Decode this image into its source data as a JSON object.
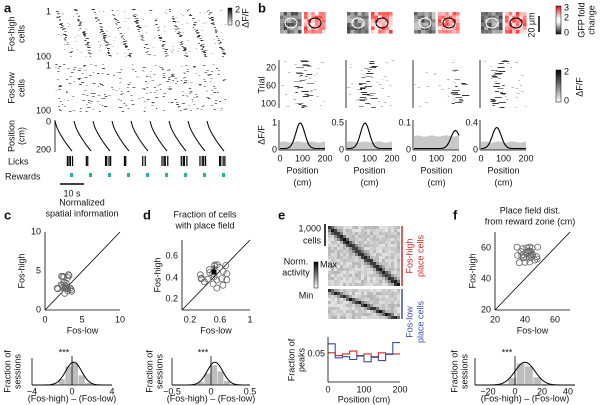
{
  "a": {
    "label": "a",
    "high": {
      "label": [
        "Fos-high",
        "cells"
      ],
      "ticks": [
        "1",
        "100"
      ]
    },
    "low": {
      "label": [
        "Fos-low",
        "cells"
      ],
      "ticks": [
        "1",
        "100"
      ]
    },
    "position": {
      "label": [
        "Position",
        "(cm)"
      ],
      "ticks": [
        "0",
        "200"
      ]
    },
    "colorbar": {
      "ticks": [
        "2",
        "0"
      ],
      "label": "ΔF/F"
    },
    "licks": "Licks",
    "rewards": "Rewards",
    "scale_bar": "10 s"
  },
  "b": {
    "label": "b",
    "scale_bar": "20 μm",
    "gfp_colorbar": {
      "ticks": [
        "3",
        "2",
        "0"
      ],
      "label": [
        "GFP fold",
        "change"
      ]
    },
    "trial_label": "Trial",
    "trial_ticks": [
      "20",
      "60",
      "100"
    ],
    "colorbar": {
      "ticks": [
        "2",
        "0"
      ],
      "label": "ΔF/F"
    },
    "trace_label": "ΔF/F",
    "cells": [
      {
        "yticks": [
          "1",
          "0"
        ],
        "xticks": [
          "0",
          "100",
          "200"
        ],
        "xlabel": [
          "Position",
          "(cm)"
        ]
      },
      {
        "yticks": [
          "0.5",
          "0"
        ],
        "xticks": [
          "0",
          "100",
          "200"
        ],
        "xlabel": [
          "Position",
          "(cm)"
        ]
      },
      {
        "yticks": [
          "0.1",
          "0"
        ],
        "xticks": [
          "0",
          "100",
          "200"
        ],
        "xlabel": [
          "Position",
          "(cm)"
        ]
      },
      {
        "yticks": [
          "0.4",
          "0"
        ],
        "xticks": [
          "0",
          "100",
          "200"
        ],
        "xlabel": [
          "Position",
          "(cm)"
        ]
      }
    ]
  },
  "c": {
    "label": "c",
    "title": [
      "Normalized",
      "spatial information"
    ],
    "ylabel": "Fos-high",
    "yticks": [
      "10",
      "5",
      "0"
    ],
    "xticks": [
      "0",
      "5",
      "10"
    ],
    "xlabel": "Fos-low",
    "hist_ylabel": [
      "Fraction of",
      "sessions"
    ],
    "significance": "***",
    "hist_xticks": [
      "−4",
      "0",
      "4"
    ],
    "hist_xlabel": "(Fos-high) – (Fos-low)"
  },
  "d": {
    "label": "d",
    "title": [
      "Fraction of cells",
      "with place field"
    ],
    "ylabel": "Fos-high",
    "yticks": [
      "0.6",
      "0.4",
      "0.2"
    ],
    "xticks": [
      "0.2",
      "0.6",
      "1"
    ],
    "xlabel": "Fos-low",
    "hist_ylabel": [
      "Fraction of",
      "sessions"
    ],
    "significance": "***",
    "hist_xticks": [
      "−0.5",
      "0",
      "0.5"
    ],
    "hist_xlabel": "(Fos-high) – (Fos-low)"
  },
  "e": {
    "label": "e",
    "scale_bar": [
      "1,000",
      "cells"
    ],
    "colorbar_label": [
      "Norm.",
      "activity"
    ],
    "colorbar_ticks": [
      "Max",
      "Min"
    ],
    "high_label": [
      "Fos-high",
      "place cells"
    ],
    "low_label": [
      "Fos-low",
      "place cells"
    ],
    "hist_ylabel": [
      "Fraction of",
      "peaks"
    ],
    "hist_yticks": [
      "0.05"
    ],
    "hist_xticks": [
      "0",
      "100",
      "200"
    ],
    "hist_xlabel": "Position (cm)"
  },
  "f": {
    "label": "f",
    "title": [
      "Place field dist.",
      "from reward zone (cm)"
    ],
    "ylabel": "Fos-high",
    "yticks": [
      "60",
      "40",
      "20"
    ],
    "xticks": [
      "20",
      "40",
      "60"
    ],
    "xlabel": "Fos-low",
    "hist_ylabel": [
      "Fraction of",
      "sessions"
    ],
    "significance": "***",
    "hist_xticks": [
      "−20",
      "0",
      "20",
      "40"
    ],
    "hist_xlabel": "(Fos-high) – (Fos-low)"
  }
}
